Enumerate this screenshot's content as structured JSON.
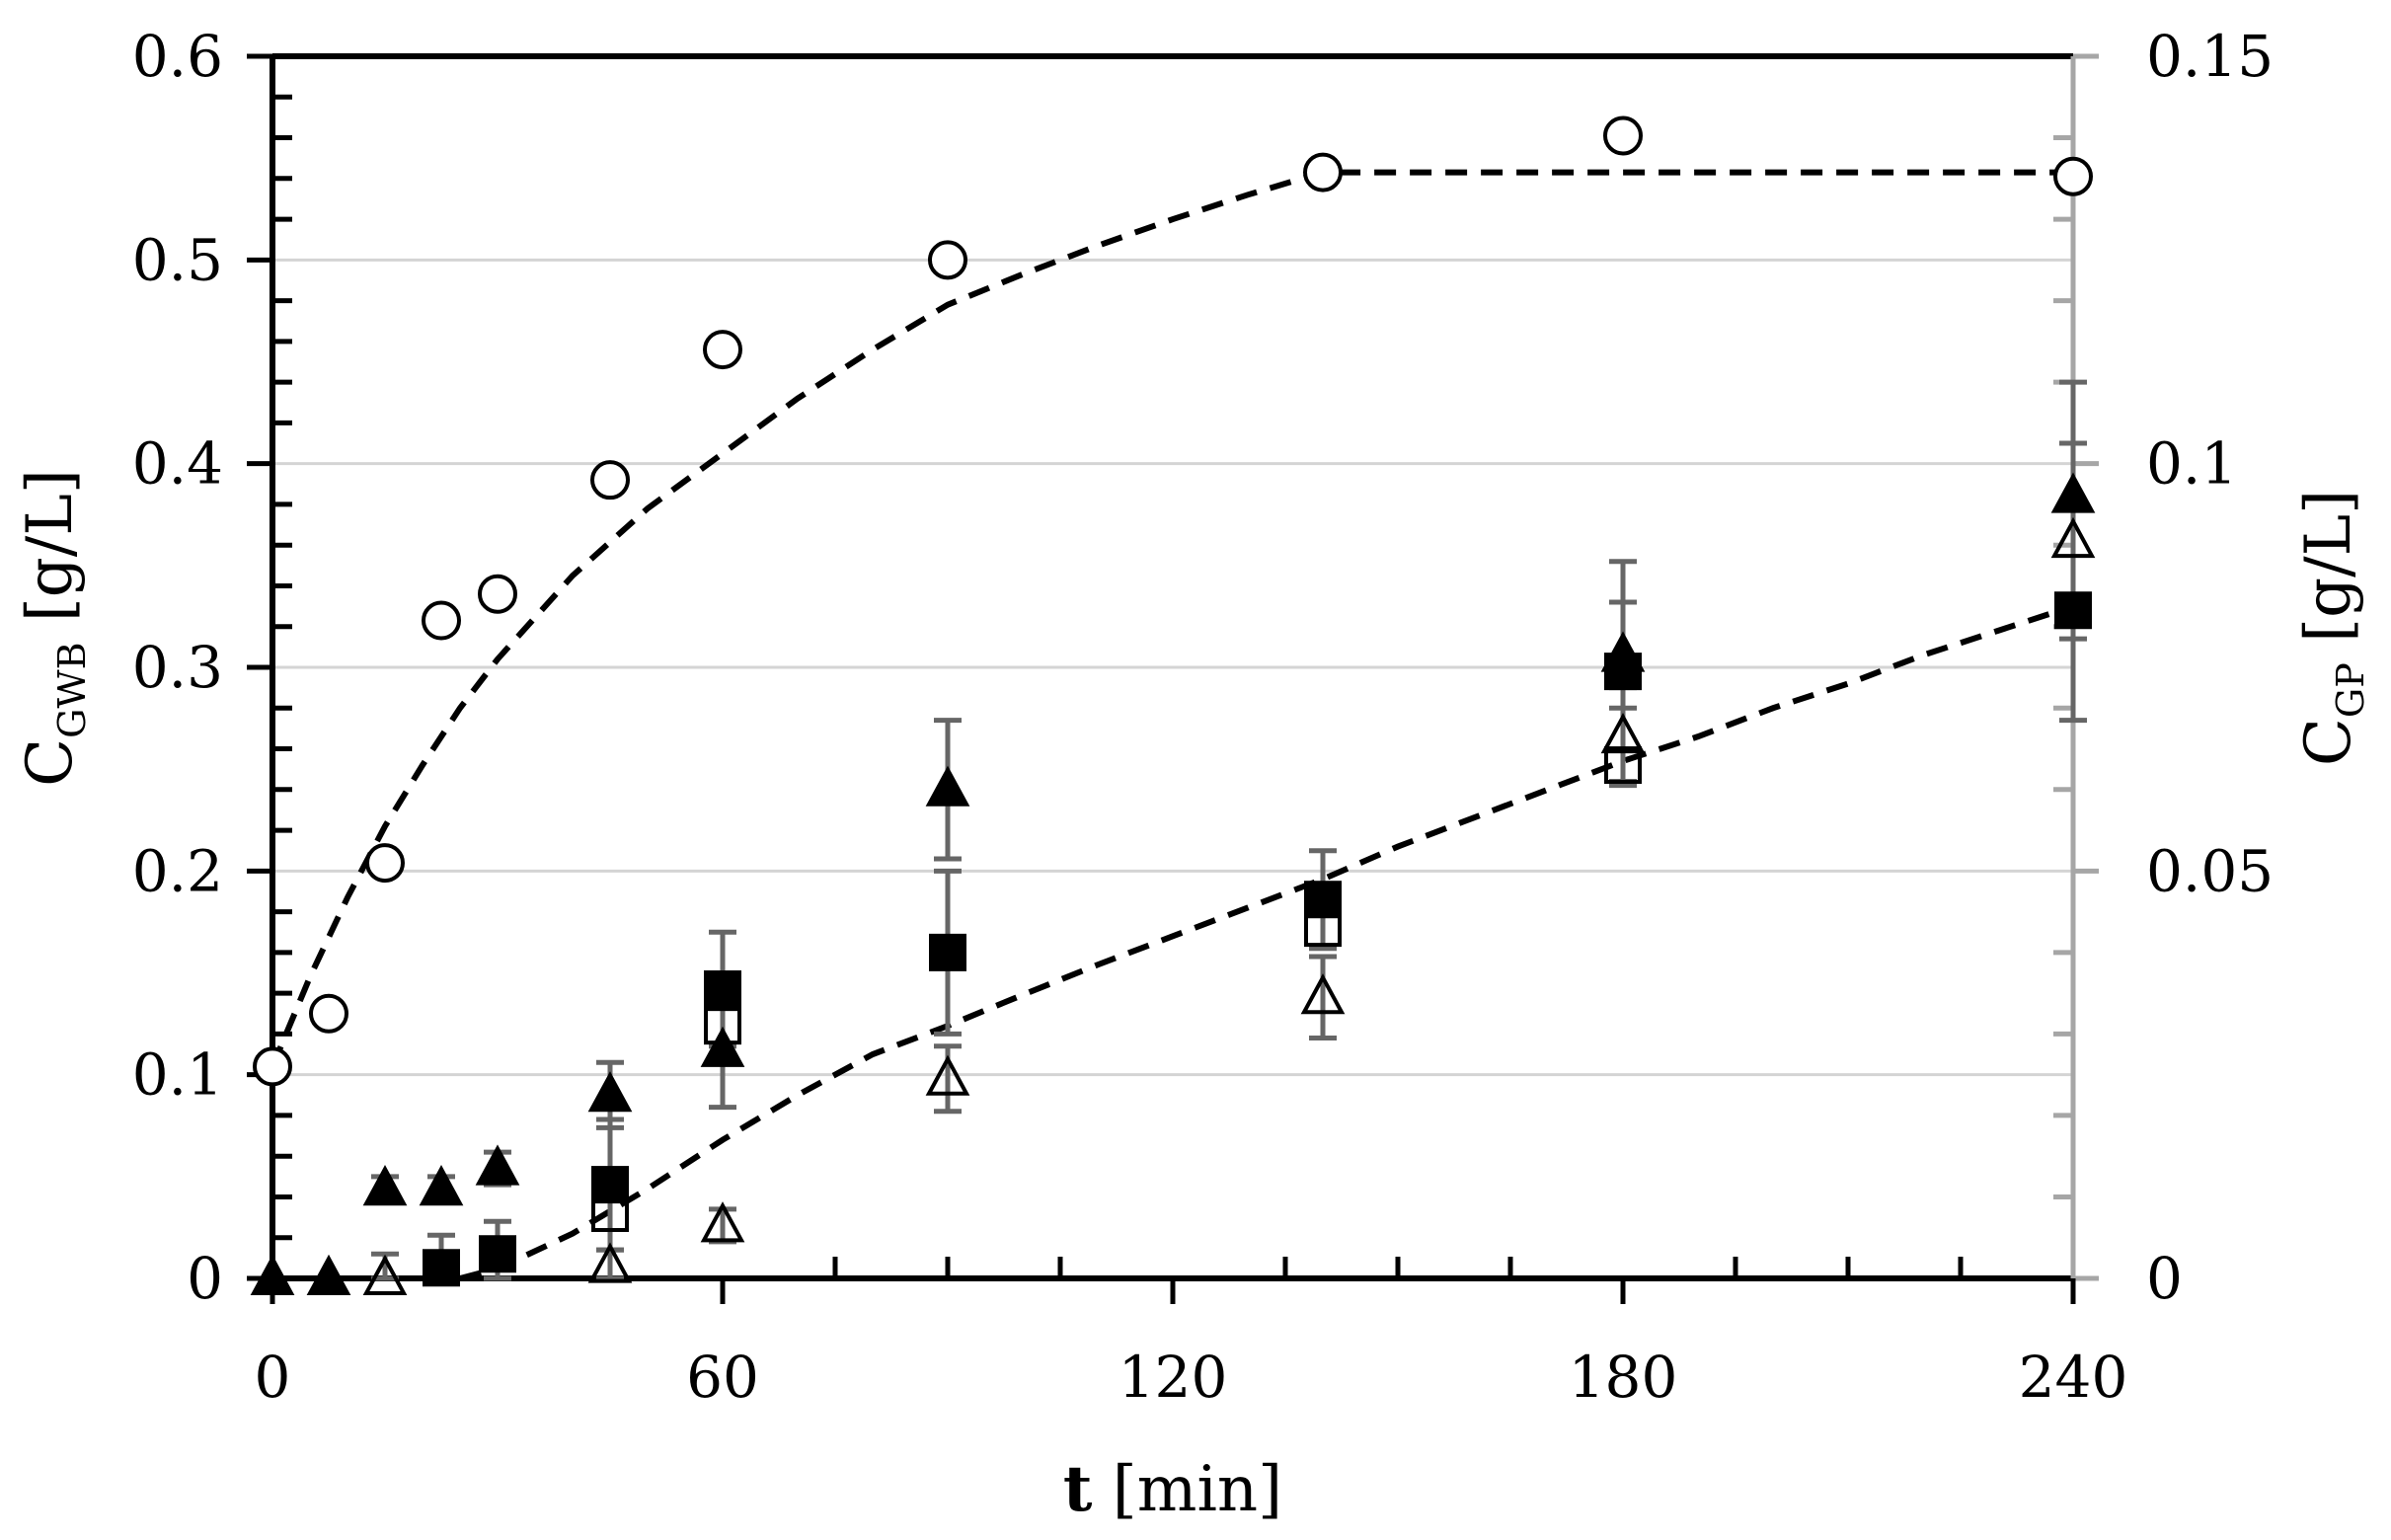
{
  "chart_data": {
    "type": "scatter",
    "title": "",
    "x": {
      "label_bold": "t",
      "label_rest": " [min]",
      "range": [
        0,
        240
      ],
      "ticks": [
        0,
        60,
        120,
        180,
        240
      ],
      "tick_labels": [
        "0",
        "60",
        "120",
        "180",
        "240"
      ]
    },
    "y_left": {
      "label_main": "C",
      "label_sub": "GWB",
      "label_unit": " [g/L]",
      "range": [
        0,
        0.6
      ],
      "ticks": [
        0,
        0.1,
        0.2,
        0.3,
        0.4,
        0.5,
        0.6
      ],
      "tick_labels": [
        "0",
        "0.1",
        "0.2",
        "0.3",
        "0.4",
        "0.5",
        "0.6"
      ]
    },
    "y_right": {
      "label_main": "C",
      "label_sub": "GP",
      "label_unit": " [g/L]",
      "range": [
        0,
        0.15
      ],
      "ticks": [
        0,
        0.05,
        0.1,
        0.15
      ],
      "tick_labels": [
        "0",
        "0.05",
        "0.1",
        "0.15"
      ]
    },
    "grid": "horizontal",
    "series": [
      {
        "name": "C_GWB",
        "axis": "left",
        "marker": "circle-open",
        "x": [
          0,
          7.5,
          15,
          22.5,
          30,
          45,
          60,
          90,
          140,
          180,
          240
        ],
        "y": [
          0.104,
          0.13,
          0.204,
          0.323,
          0.336,
          0.392,
          0.456,
          0.5,
          0.543,
          0.561,
          0.541
        ]
      },
      {
        "name": "C_GWB fit",
        "axis": "left",
        "style": "dashed-line",
        "x": [
          0,
          5,
          10,
          15,
          20,
          25,
          30,
          40,
          50,
          60,
          70,
          80,
          90,
          100,
          110,
          120,
          130,
          140,
          150,
          160,
          180,
          200,
          220,
          240
        ],
        "y": [
          0.104,
          0.148,
          0.187,
          0.222,
          0.252,
          0.28,
          0.304,
          0.345,
          0.378,
          0.405,
          0.432,
          0.456,
          0.478,
          0.493,
          0.507,
          0.52,
          0.532,
          0.543,
          0.543,
          0.543,
          0.543,
          0.543,
          0.543,
          0.543
        ]
      },
      {
        "name": "C_GP filled square",
        "axis": "right",
        "marker": "square-filled",
        "x": [
          22.5,
          30,
          45,
          60,
          90,
          140,
          180,
          240
        ],
        "y": [
          0.0013,
          0.003,
          0.0115,
          0.0355,
          0.04,
          0.0465,
          0.0745,
          0.082
        ],
        "err": [
          0.004,
          0.004,
          0.008,
          0.007,
          0.01,
          0.006,
          0.0135,
          0.0135
        ]
      },
      {
        "name": "C_GP open square",
        "axis": "right",
        "marker": "square-open",
        "x": [
          45,
          60,
          140,
          180
        ],
        "y": [
          0.008,
          0.031,
          0.043,
          0.063
        ]
      },
      {
        "name": "C_GP filled triangle",
        "axis": "right",
        "marker": "triangle-filled",
        "x": [
          0,
          7.5,
          15,
          22.5,
          30,
          45,
          60,
          90,
          180,
          240
        ],
        "y": [
          0,
          0,
          0.011,
          0.011,
          0.0135,
          0.0225,
          0.028,
          0.06,
          0.0765,
          0.096
        ],
        "err": [
          0,
          0,
          0.0015,
          0.0015,
          0.002,
          0.004,
          0.007,
          0.0085,
          0.0065,
          0.014
        ]
      },
      {
        "name": "C_GP open triangle",
        "axis": "right",
        "marker": "triangle-open",
        "x": [
          15,
          45,
          60,
          90,
          140,
          180,
          240
        ],
        "y": [
          0,
          0.0015,
          0.0065,
          0.0245,
          0.0345,
          0.0665,
          0.0905
        ],
        "err": [
          0.003,
          0.002,
          0.002,
          0.004,
          0.005,
          0.006,
          0.012
        ]
      },
      {
        "name": "C_GP fit",
        "axis": "right",
        "style": "dashed-line",
        "x": [
          25,
          30,
          40,
          50,
          60,
          70,
          80,
          90,
          100,
          110,
          120,
          130,
          140,
          150,
          160,
          170,
          180,
          190,
          200,
          210,
          220,
          230,
          240
        ],
        "y": [
          0,
          0.0012,
          0.0055,
          0.011,
          0.017,
          0.0225,
          0.0275,
          0.031,
          0.0348,
          0.0385,
          0.042,
          0.0455,
          0.049,
          0.053,
          0.0565,
          0.06,
          0.0635,
          0.0665,
          0.07,
          0.073,
          0.0765,
          0.0795,
          0.0825
        ]
      }
    ]
  }
}
